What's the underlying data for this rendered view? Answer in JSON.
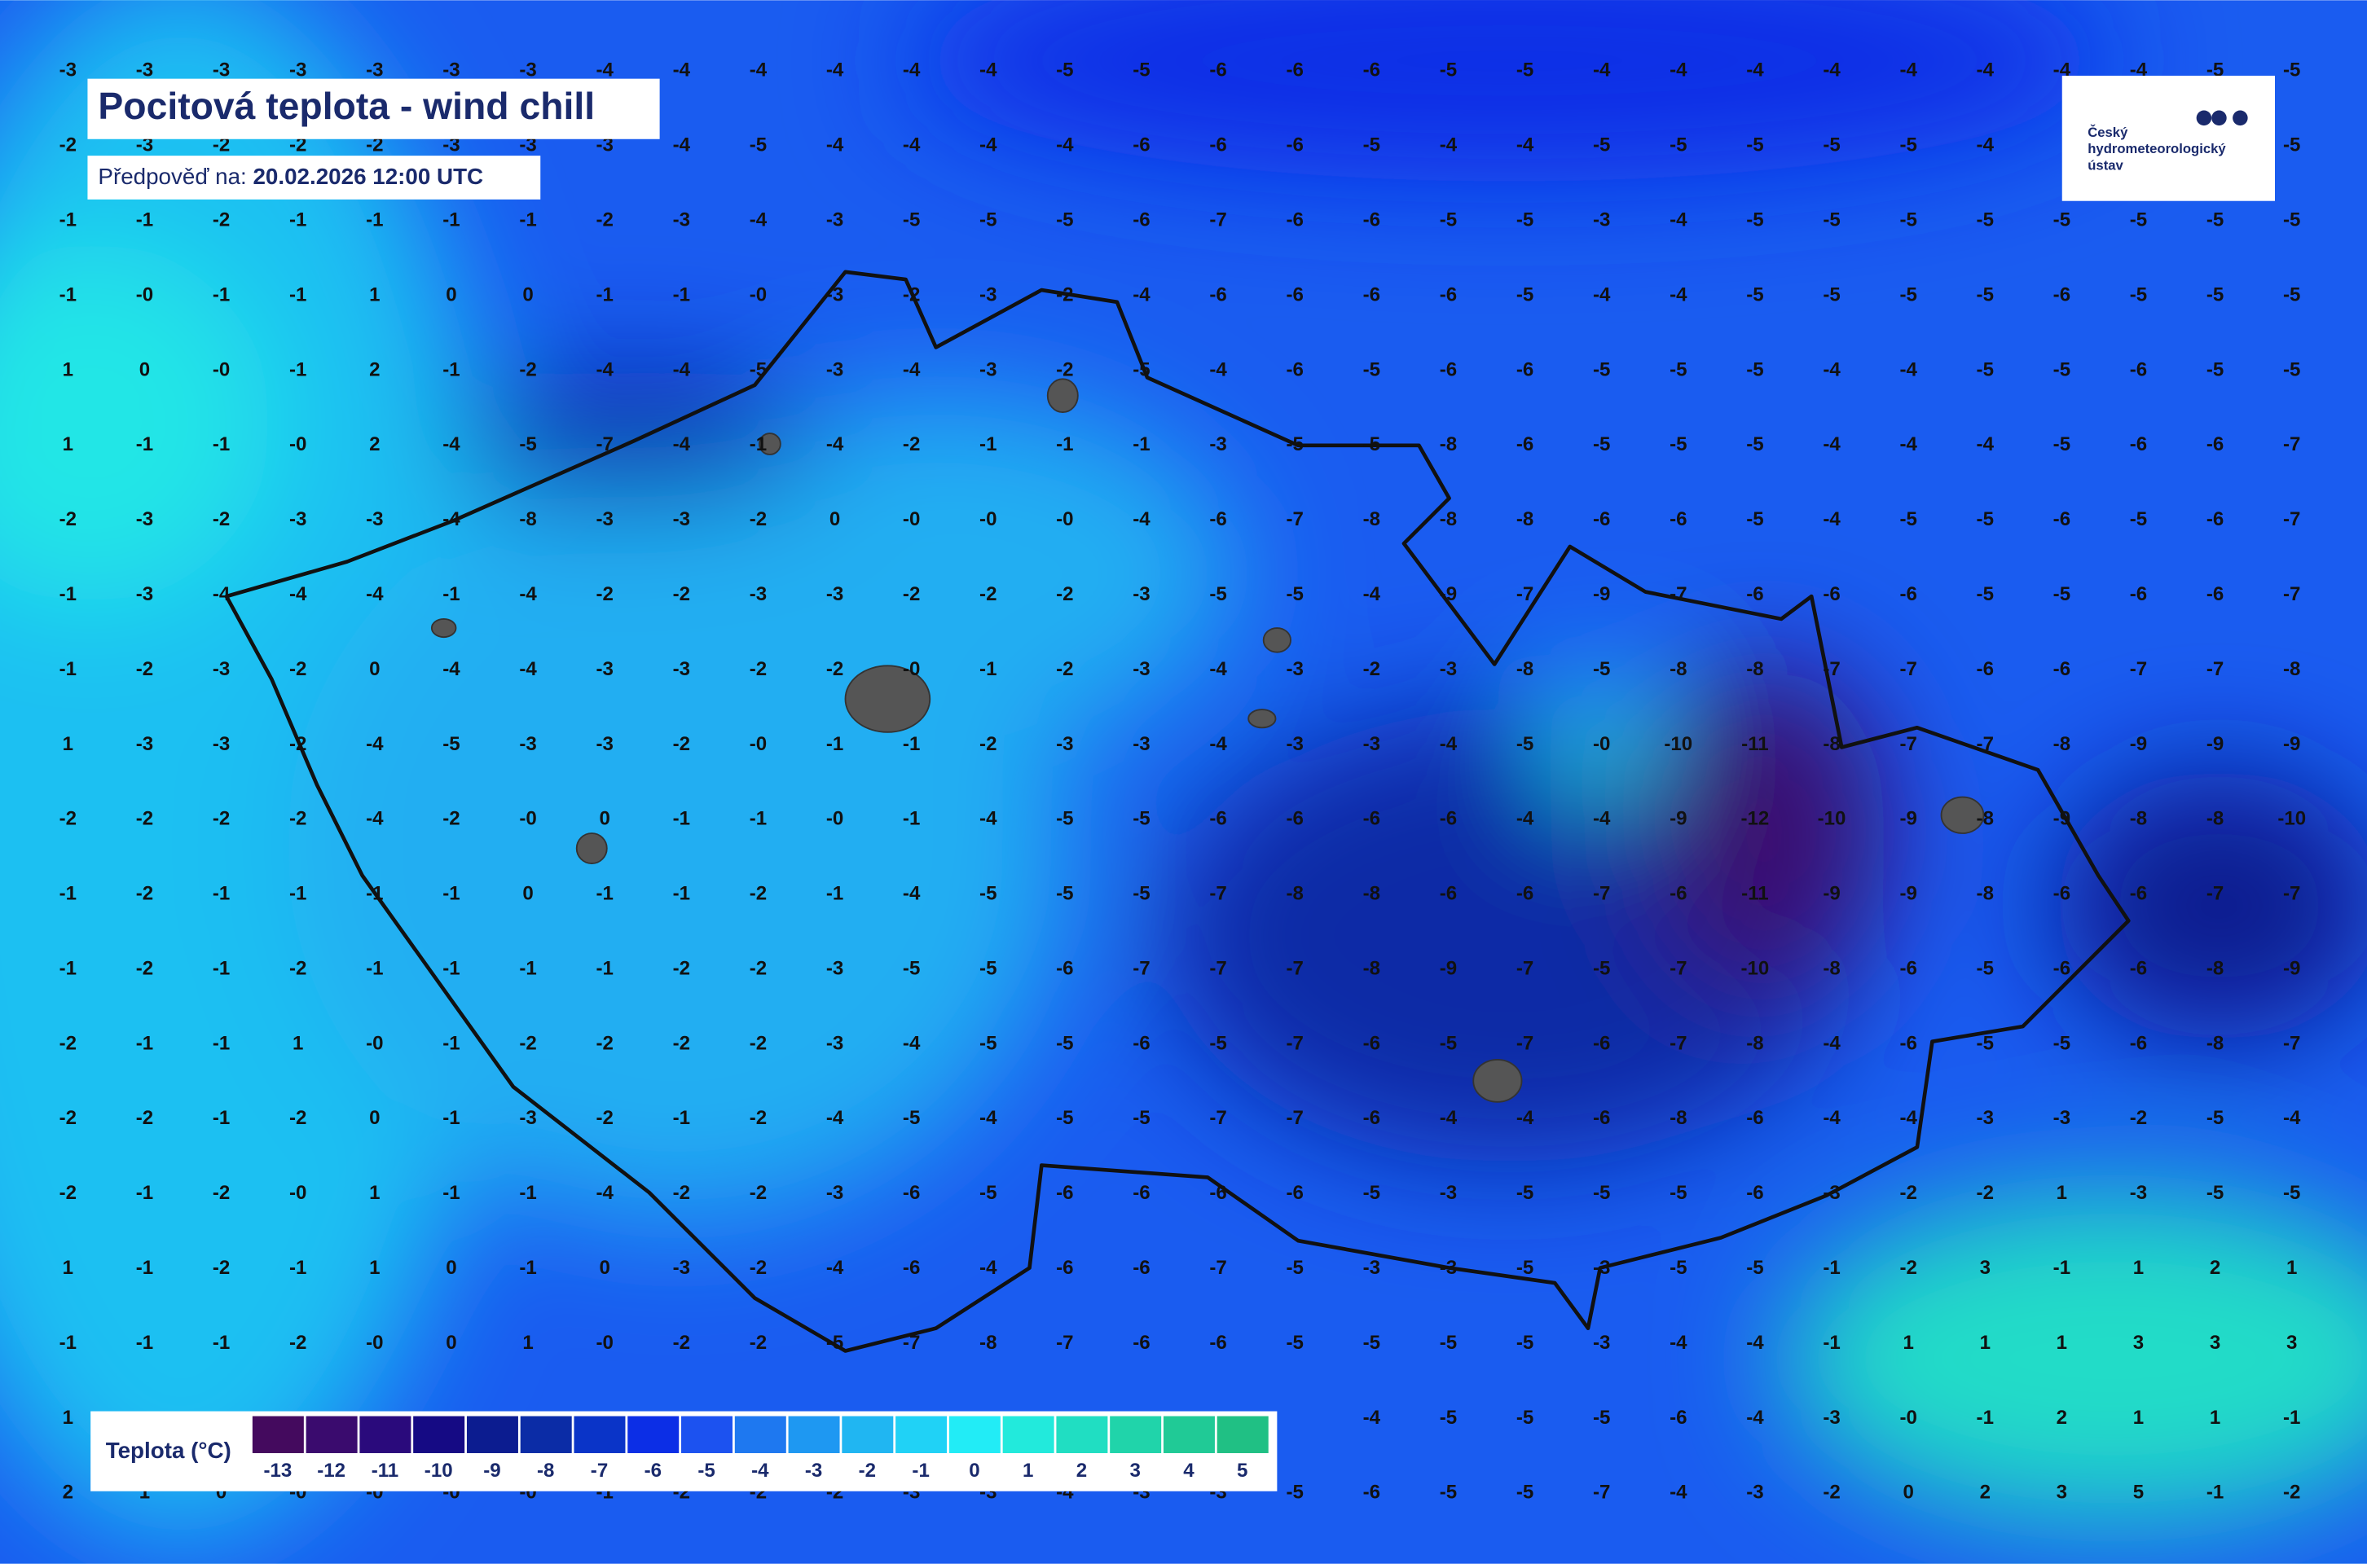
{
  "header": {
    "title": "Pocitová teplota - wind chill",
    "forecast_label": "Předpověď na:",
    "forecast_time": "20.02.2026 12:00 UTC"
  },
  "logo": {
    "lines": [
      "Český",
      "hydrometeorologický",
      "ústav"
    ]
  },
  "legend": {
    "title": "Teplota (°C)",
    "items": [
      {
        "label": "-13",
        "color": "#440a5e"
      },
      {
        "label": "-12",
        "color": "#3a0b6e"
      },
      {
        "label": "-11",
        "color": "#2a0a7c"
      },
      {
        "label": "-10",
        "color": "#150a84"
      },
      {
        "label": "-9",
        "color": "#0c1c90"
      },
      {
        "label": "-8",
        "color": "#0b2ca6"
      },
      {
        "label": "-7",
        "color": "#0a34c8"
      },
      {
        "label": "-6",
        "color": "#0c2ee6"
      },
      {
        "label": "-5",
        "color": "#1c52f0"
      },
      {
        "label": "-4",
        "color": "#1e78f0"
      },
      {
        "label": "-3",
        "color": "#1e98f2"
      },
      {
        "label": "-2",
        "color": "#20b6f2"
      },
      {
        "label": "-1",
        "color": "#20d2f6"
      },
      {
        "label": "0",
        "color": "#22ecf6"
      },
      {
        "label": "1",
        "color": "#22eadc"
      },
      {
        "label": "2",
        "color": "#20deC2"
      },
      {
        "label": "3",
        "color": "#20d4aa"
      },
      {
        "label": "4",
        "color": "#20ca96"
      },
      {
        "label": "5",
        "color": "#20c084"
      }
    ]
  },
  "grid": [
    [
      "-3",
      "-3",
      "-3",
      "-3",
      "-3",
      "-3",
      "-3",
      "-4",
      "-4",
      "-4",
      "-4",
      "-4",
      "-4",
      "-5",
      "-5",
      "-6",
      "-6",
      "-6",
      "-5",
      "-5",
      "-4",
      "-4",
      "-4",
      "-4",
      "-4",
      "-4",
      "-4",
      "-4",
      "-5",
      "-5"
    ],
    [
      "-2",
      "-3",
      "-2",
      "-2",
      "-2",
      "-3",
      "-3",
      "-3",
      "-4",
      "-5",
      "-4",
      "-4",
      "-4",
      "-4",
      "-6",
      "-6",
      "-6",
      "-5",
      "-4",
      "-4",
      "-5",
      "-5",
      "-5",
      "-5",
      "-5",
      "-4",
      null,
      null,
      null,
      "-5"
    ],
    [
      "-1",
      "-1",
      "-2",
      "-1",
      "-1",
      "-1",
      "-1",
      "-2",
      "-3",
      "-4",
      "-3",
      "-5",
      "-5",
      "-5",
      "-6",
      "-7",
      "-6",
      "-6",
      "-5",
      "-5",
      "-3",
      "-4",
      "-5",
      "-5",
      "-5",
      "-5",
      "-5",
      "-5",
      "-5",
      "-5"
    ],
    [
      "-1",
      "-0",
      "-1",
      "-1",
      "1",
      "0",
      "0",
      "-1",
      "-1",
      "-0",
      "-3",
      "-2",
      "-3",
      "-2",
      "-4",
      "-6",
      "-6",
      "-6",
      "-6",
      "-5",
      "-4",
      "-4",
      "-5",
      "-5",
      "-5",
      "-5",
      "-6",
      "-5",
      "-5",
      "-5"
    ],
    [
      "1",
      "0",
      "-0",
      "-1",
      "2",
      "-1",
      "-2",
      "-4",
      "-4",
      "-5",
      "-3",
      "-4",
      "-3",
      "-2",
      "-5",
      "-4",
      "-6",
      "-5",
      "-6",
      "-6",
      "-5",
      "-5",
      "-5",
      "-4",
      "-4",
      "-5",
      "-5",
      "-6",
      "-5",
      "-5"
    ],
    [
      "1",
      "-1",
      "-1",
      "-0",
      "2",
      "-4",
      "-5",
      "-7",
      "-4",
      "-1",
      "-4",
      "-2",
      "-1",
      "-1",
      "-1",
      "-3",
      "-5",
      "-5",
      "-8",
      "-6",
      "-5",
      "-5",
      "-5",
      "-4",
      "-4",
      "-4",
      "-5",
      "-6",
      "-6",
      "-7"
    ],
    [
      "-2",
      "-3",
      "-2",
      "-3",
      "-3",
      "-4",
      "-8",
      "-3",
      "-3",
      "-2",
      "0",
      "-0",
      "-0",
      "-0",
      "-4",
      "-6",
      "-7",
      "-8",
      "-8",
      "-8",
      "-6",
      "-6",
      "-5",
      "-4",
      "-5",
      "-5",
      "-6",
      "-5",
      "-6",
      "-7"
    ],
    [
      "-1",
      "-3",
      "-4",
      "-4",
      "-4",
      "-1",
      "-4",
      "-2",
      "-2",
      "-3",
      "-3",
      "-2",
      "-2",
      "-2",
      "-3",
      "-5",
      "-5",
      "-4",
      "-9",
      "-7",
      "-9",
      "-7",
      "-6",
      "-6",
      "-6",
      "-5",
      "-5",
      "-6",
      "-6",
      "-7"
    ],
    [
      "-1",
      "-2",
      "-3",
      "-2",
      "0",
      "-4",
      "-4",
      "-3",
      "-3",
      "-2",
      "-2",
      "-0",
      "-1",
      "-2",
      "-3",
      "-4",
      "-3",
      "-2",
      "-3",
      "-8",
      "-5",
      "-8",
      "-8",
      "-7",
      "-7",
      "-6",
      "-6",
      "-7",
      "-7",
      "-8"
    ],
    [
      "1",
      "-3",
      "-3",
      "-2",
      "-4",
      "-5",
      "-3",
      "-3",
      "-2",
      "-0",
      "-1",
      "-1",
      "-2",
      "-3",
      "-3",
      "-4",
      "-3",
      "-3",
      "-4",
      "-5",
      "-0",
      "-10",
      "-11",
      "-8",
      "-7",
      "-7",
      "-8",
      "-9",
      "-9",
      "-9"
    ],
    [
      "-2",
      "-2",
      "-2",
      "-2",
      "-4",
      "-2",
      "-0",
      "0",
      "-1",
      "-1",
      "-0",
      "-1",
      "-4",
      "-5",
      "-5",
      "-6",
      "-6",
      "-6",
      "-6",
      "-4",
      "-4",
      "-9",
      "-12",
      "-10",
      "-9",
      "-8",
      "-9",
      "-8",
      "-8",
      "-10"
    ],
    [
      "-1",
      "-2",
      "-1",
      "-1",
      "-1",
      "-1",
      "0",
      "-1",
      "-1",
      "-2",
      "-1",
      "-4",
      "-5",
      "-5",
      "-5",
      "-7",
      "-8",
      "-8",
      "-6",
      "-6",
      "-7",
      "-6",
      "-11",
      "-9",
      "-9",
      "-8",
      "-6",
      "-6",
      "-7",
      "-7"
    ],
    [
      "-1",
      "-2",
      "-1",
      "-2",
      "-1",
      "-1",
      "-1",
      "-1",
      "-2",
      "-2",
      "-3",
      "-5",
      "-5",
      "-6",
      "-7",
      "-7",
      "-7",
      "-8",
      "-9",
      "-7",
      "-5",
      "-7",
      "-10",
      "-8",
      "-6",
      "-5",
      "-6",
      "-6",
      "-8",
      "-9"
    ],
    [
      "-2",
      "-1",
      "-1",
      "1",
      "-0",
      "-1",
      "-2",
      "-2",
      "-2",
      "-2",
      "-3",
      "-4",
      "-5",
      "-5",
      "-6",
      "-5",
      "-7",
      "-6",
      "-5",
      "-7",
      "-6",
      "-7",
      "-8",
      "-4",
      "-6",
      "-5",
      "-5",
      "-6",
      "-8",
      "-7"
    ],
    [
      "-2",
      "-2",
      "-1",
      "-2",
      "0",
      "-1",
      "-3",
      "-2",
      "-1",
      "-2",
      "-4",
      "-5",
      "-4",
      "-5",
      "-5",
      "-7",
      "-7",
      "-6",
      "-4",
      "-4",
      "-6",
      "-8",
      "-6",
      "-4",
      "-4",
      "-3",
      "-3",
      "-2",
      "-5",
      "-4"
    ],
    [
      "-2",
      "-1",
      "-2",
      "-0",
      "1",
      "-1",
      "-1",
      "-4",
      "-2",
      "-2",
      "-3",
      "-6",
      "-5",
      "-6",
      "-6",
      "-6",
      "-6",
      "-5",
      "-3",
      "-5",
      "-5",
      "-5",
      "-6",
      "-3",
      "-2",
      "-2",
      "1",
      "-3",
      "-5",
      "-5"
    ],
    [
      "1",
      "-1",
      "-2",
      "-1",
      "1",
      "0",
      "-1",
      "0",
      "-3",
      "-2",
      "-4",
      "-6",
      "-4",
      "-6",
      "-6",
      "-7",
      "-5",
      "-3",
      "-3",
      "-5",
      "-3",
      "-5",
      "-5",
      "-1",
      "-2",
      "3",
      "-1",
      "1",
      "2",
      "1"
    ],
    [
      "-1",
      "-1",
      "-1",
      "-2",
      "-0",
      "0",
      "1",
      "-0",
      "-2",
      "-2",
      "-5",
      "-7",
      "-8",
      "-7",
      "-6",
      "-6",
      "-5",
      "-5",
      "-5",
      "-5",
      "-3",
      "-4",
      "-4",
      "-1",
      "1",
      "1",
      "1",
      "3",
      "3",
      "3"
    ],
    [
      "1",
      null,
      null,
      null,
      null,
      null,
      null,
      null,
      null,
      null,
      null,
      null,
      null,
      null,
      null,
      null,
      null,
      "-4",
      "-5",
      "-5",
      "-5",
      "-6",
      "-4",
      "-3",
      "-0",
      "-1",
      "2",
      "1",
      "1",
      "-1"
    ],
    [
      "2",
      "1",
      "0",
      "-0",
      "-0",
      "-0",
      "-0",
      "-1",
      "-2",
      "-2",
      "-2",
      "-3",
      "-3",
      "-4",
      "-3",
      "-3",
      "-5",
      "-6",
      "-5",
      "-5",
      "-7",
      "-4",
      "-3",
      "-2",
      "0",
      "2",
      "3",
      "5",
      "-1",
      "-2"
    ]
  ]
}
